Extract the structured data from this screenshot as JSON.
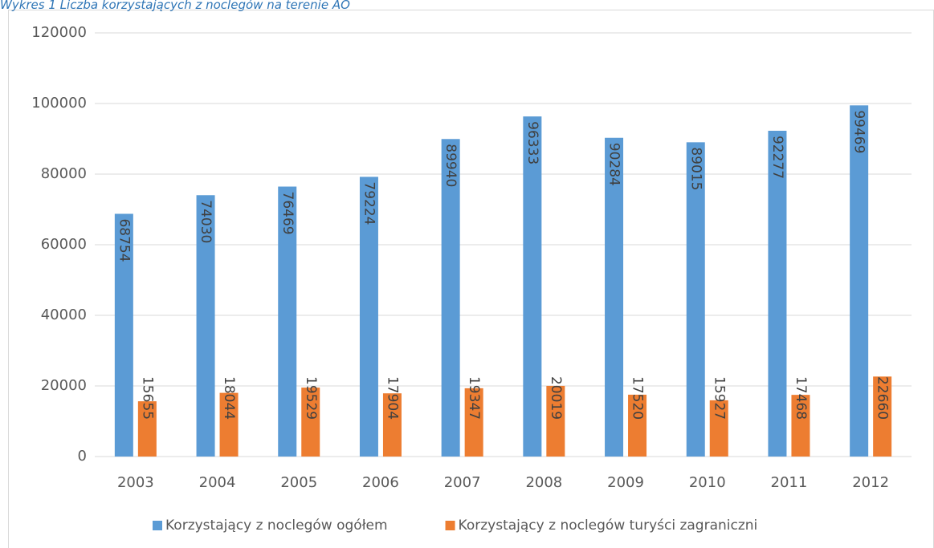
{
  "chart_data": {
    "type": "bar",
    "title": "Wykres 1 Liczba korzystających z noclegów na terenie AO",
    "categories": [
      "2003",
      "2004",
      "2005",
      "2006",
      "2007",
      "2008",
      "2009",
      "2010",
      "2011",
      "2012"
    ],
    "series": [
      {
        "name": "Korzystający z noclegów ogółem",
        "color": "#5b9bd5",
        "values": [
          68754,
          74030,
          76469,
          79224,
          89940,
          96333,
          90284,
          89015,
          92277,
          99469
        ]
      },
      {
        "name": "Korzystający z noclegów turyści zagraniczni",
        "color": "#ed7d31",
        "values": [
          15655,
          18044,
          19529,
          17904,
          19347,
          20019,
          17520,
          15927,
          17468,
          22660
        ]
      }
    ],
    "ylim": [
      0,
      120000
    ],
    "yticks": [
      0,
      20000,
      40000,
      60000,
      80000,
      100000,
      120000
    ],
    "grid": true,
    "legend": "bottom"
  }
}
